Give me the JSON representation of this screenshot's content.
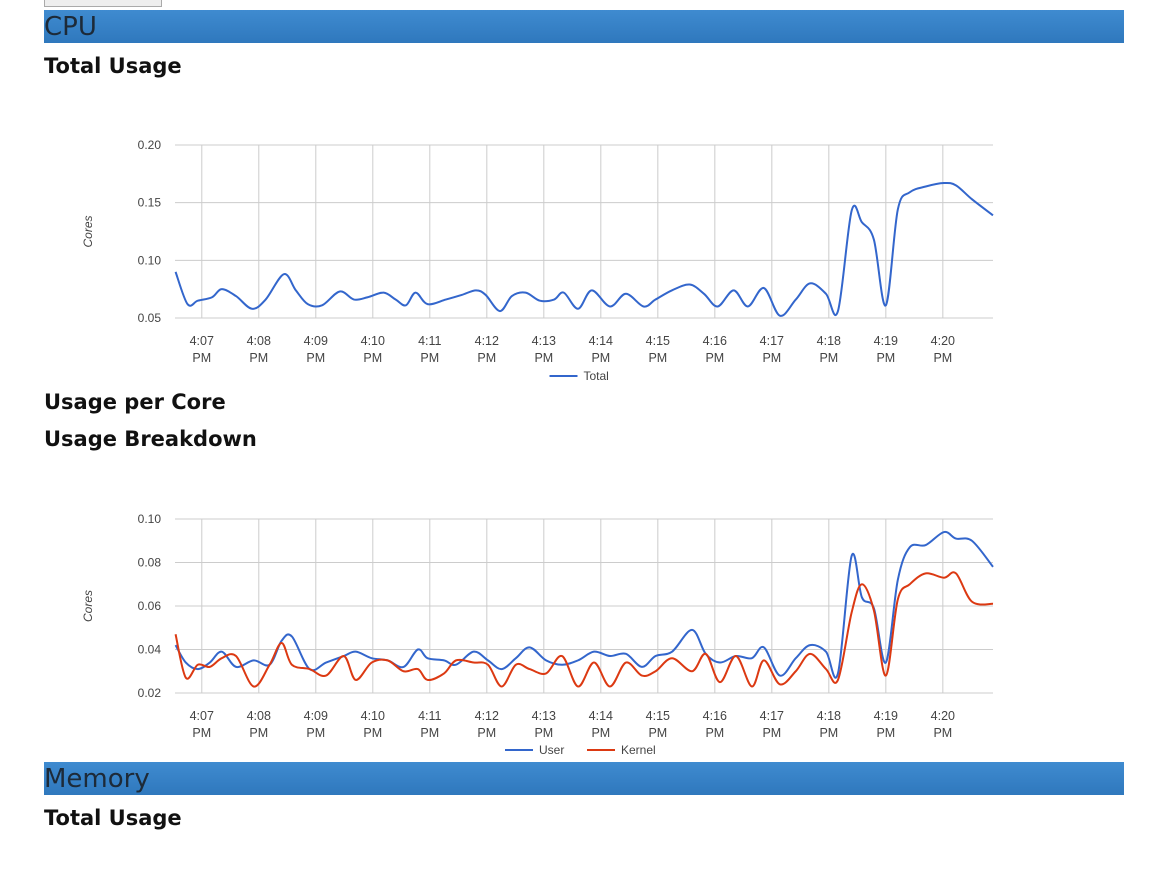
{
  "sections": [
    {
      "title": "CPU",
      "subsections": [
        "Total Usage",
        "Usage per Core",
        "Usage Breakdown"
      ]
    },
    {
      "title": "Memory",
      "subsections": [
        "Total Usage"
      ]
    }
  ],
  "chart_data": [
    {
      "type": "line",
      "y_label": "Cores",
      "legend": "bottom",
      "grid": true,
      "x": [
        6.54,
        6.75,
        6.93,
        7.18,
        7.35,
        7.6,
        7.88,
        8.12,
        8.44,
        8.65,
        8.86,
        9.11,
        9.42,
        9.67,
        9.91,
        10.19,
        10.4,
        10.58,
        10.75,
        10.96,
        11.28,
        11.56,
        11.81,
        11.98,
        12.23,
        12.44,
        12.68,
        12.93,
        13.18,
        13.35,
        13.6,
        13.84,
        14.16,
        14.44,
        14.75,
        14.96,
        15.25,
        15.56,
        15.81,
        16.05,
        16.33,
        16.58,
        16.86,
        17.14,
        17.42,
        17.67,
        17.95,
        18.16,
        18.4,
        18.58,
        18.79,
        19.0,
        19.21,
        19.42,
        19.7,
        20.02,
        20.23,
        20.51,
        20.88
      ],
      "xlim": [
        6.53,
        20.88
      ],
      "xticks": [
        {
          "value": 7,
          "label": "4:07 PM"
        },
        {
          "value": 8,
          "label": "4:08 PM"
        },
        {
          "value": 9,
          "label": "4:09 PM"
        },
        {
          "value": 10,
          "label": "4:10 PM"
        },
        {
          "value": 11,
          "label": "4:11 PM"
        },
        {
          "value": 12,
          "label": "4:12 PM"
        },
        {
          "value": 13,
          "label": "4:13 PM"
        },
        {
          "value": 14,
          "label": "4:14 PM"
        },
        {
          "value": 15,
          "label": "4:15 PM"
        },
        {
          "value": 16,
          "label": "4:16 PM"
        },
        {
          "value": 17,
          "label": "4:17 PM"
        },
        {
          "value": 18,
          "label": "4:18 PM"
        },
        {
          "value": 19,
          "label": "4:19 PM"
        },
        {
          "value": 20,
          "label": "4:20 PM"
        }
      ],
      "ylim": [
        0.05,
        0.2
      ],
      "yticks": [
        0.05,
        {
          "value": 0.1,
          "label": "0.10"
        },
        0.15,
        {
          "value": 0.2,
          "label": "0.20"
        }
      ],
      "series": [
        {
          "name": "Total",
          "color": "#3366cc",
          "values": [
            0.09,
            0.062,
            0.065,
            0.068,
            0.075,
            0.069,
            0.058,
            0.066,
            0.088,
            0.074,
            0.062,
            0.061,
            0.073,
            0.066,
            0.068,
            0.072,
            0.066,
            0.061,
            0.072,
            0.062,
            0.066,
            0.07,
            0.074,
            0.07,
            0.056,
            0.069,
            0.072,
            0.065,
            0.066,
            0.072,
            0.058,
            0.074,
            0.06,
            0.071,
            0.06,
            0.066,
            0.074,
            0.079,
            0.071,
            0.06,
            0.074,
            0.06,
            0.076,
            0.052,
            0.066,
            0.08,
            0.071,
            0.056,
            0.143,
            0.133,
            0.118,
            0.061,
            0.144,
            0.159,
            0.164,
            0.167,
            0.165,
            0.153,
            0.139
          ]
        }
      ]
    },
    {
      "type": "line",
      "y_label": "Cores",
      "legend": "bottom",
      "grid": true,
      "x": [
        6.54,
        6.72,
        6.93,
        7.14,
        7.35,
        7.6,
        7.91,
        8.19,
        8.4,
        8.58,
        8.89,
        9.18,
        9.49,
        9.7,
        9.98,
        10.26,
        10.54,
        10.79,
        10.96,
        11.25,
        11.46,
        11.77,
        12.02,
        12.26,
        12.51,
        12.75,
        13.04,
        13.32,
        13.6,
        13.88,
        14.16,
        14.44,
        14.72,
        14.96,
        15.25,
        15.6,
        15.84,
        16.09,
        16.37,
        16.65,
        16.86,
        17.14,
        17.42,
        17.67,
        17.95,
        18.16,
        18.4,
        18.58,
        18.79,
        19.0,
        19.21,
        19.42,
        19.7,
        20.02,
        20.23,
        20.51,
        20.88
      ],
      "xlim": [
        6.53,
        20.88
      ],
      "xticks": [
        {
          "value": 7,
          "label": "4:07 PM"
        },
        {
          "value": 8,
          "label": "4:08 PM"
        },
        {
          "value": 9,
          "label": "4:09 PM"
        },
        {
          "value": 10,
          "label": "4:10 PM"
        },
        {
          "value": 11,
          "label": "4:11 PM"
        },
        {
          "value": 12,
          "label": "4:12 PM"
        },
        {
          "value": 13,
          "label": "4:13 PM"
        },
        {
          "value": 14,
          "label": "4:14 PM"
        },
        {
          "value": 15,
          "label": "4:15 PM"
        },
        {
          "value": 16,
          "label": "4:16 PM"
        },
        {
          "value": 17,
          "label": "4:17 PM"
        },
        {
          "value": 18,
          "label": "4:18 PM"
        },
        {
          "value": 19,
          "label": "4:19 PM"
        },
        {
          "value": 20,
          "label": "4:20 PM"
        }
      ],
      "ylim": [
        0.02,
        0.1
      ],
      "yticks": [
        0.02,
        0.04,
        0.06,
        0.08,
        {
          "value": 0.1,
          "label": "0.10"
        }
      ],
      "series": [
        {
          "name": "User",
          "color": "#3366cc",
          "values": [
            0.042,
            0.034,
            0.031,
            0.034,
            0.039,
            0.032,
            0.035,
            0.033,
            0.044,
            0.046,
            0.031,
            0.034,
            0.037,
            0.039,
            0.036,
            0.035,
            0.032,
            0.04,
            0.036,
            0.035,
            0.033,
            0.039,
            0.035,
            0.031,
            0.036,
            0.041,
            0.035,
            0.033,
            0.035,
            0.039,
            0.037,
            0.038,
            0.032,
            0.037,
            0.039,
            0.049,
            0.038,
            0.034,
            0.037,
            0.036,
            0.041,
            0.028,
            0.036,
            0.042,
            0.039,
            0.029,
            0.083,
            0.064,
            0.059,
            0.034,
            0.072,
            0.087,
            0.088,
            0.094,
            0.091,
            0.09,
            0.078
          ]
        },
        {
          "name": "Kernel",
          "color": "#dc3912",
          "values": [
            0.047,
            0.027,
            0.033,
            0.032,
            0.036,
            0.037,
            0.023,
            0.033,
            0.043,
            0.033,
            0.031,
            0.028,
            0.037,
            0.026,
            0.034,
            0.035,
            0.03,
            0.031,
            0.026,
            0.029,
            0.035,
            0.034,
            0.033,
            0.023,
            0.033,
            0.031,
            0.029,
            0.037,
            0.023,
            0.034,
            0.023,
            0.034,
            0.028,
            0.03,
            0.036,
            0.03,
            0.038,
            0.025,
            0.037,
            0.023,
            0.035,
            0.024,
            0.03,
            0.038,
            0.031,
            0.026,
            0.057,
            0.07,
            0.058,
            0.028,
            0.063,
            0.07,
            0.075,
            0.073,
            0.075,
            0.062,
            0.061
          ]
        }
      ]
    }
  ]
}
